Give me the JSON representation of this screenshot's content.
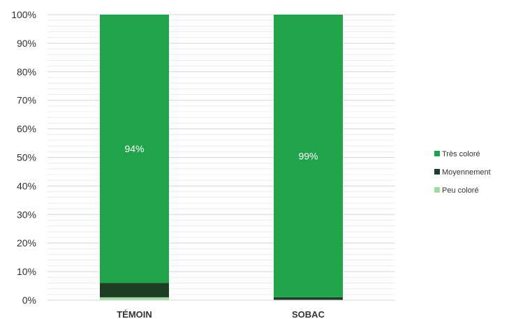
{
  "chart_data": {
    "type": "bar",
    "stacked": true,
    "categories": [
      "TÉMOIN",
      "SOBAC"
    ],
    "series": [
      {
        "name": "Peu coloré",
        "color": "#a3d9a5",
        "values": [
          1,
          0
        ]
      },
      {
        "name": "Moyennement",
        "color": "#1f3d24",
        "values": [
          5,
          1
        ]
      },
      {
        "name": "Très coloré",
        "color": "#22a24a",
        "values": [
          94,
          99
        ]
      }
    ],
    "data_labels": [
      {
        "category": "TÉMOIN",
        "series": "Très coloré",
        "text": "94%"
      },
      {
        "category": "SOBAC",
        "series": "Très coloré",
        "text": "99%"
      }
    ],
    "yticks": [
      "0%",
      "10%",
      "20%",
      "30%",
      "40%",
      "50%",
      "60%",
      "70%",
      "80%",
      "90%",
      "100%"
    ],
    "ylim": [
      0,
      100
    ],
    "title": "",
    "xlabel": "",
    "ylabel": "",
    "grid": true,
    "legend": {
      "position": "right",
      "order": [
        "Très coloré",
        "Moyennement",
        "Peu coloré"
      ]
    }
  }
}
